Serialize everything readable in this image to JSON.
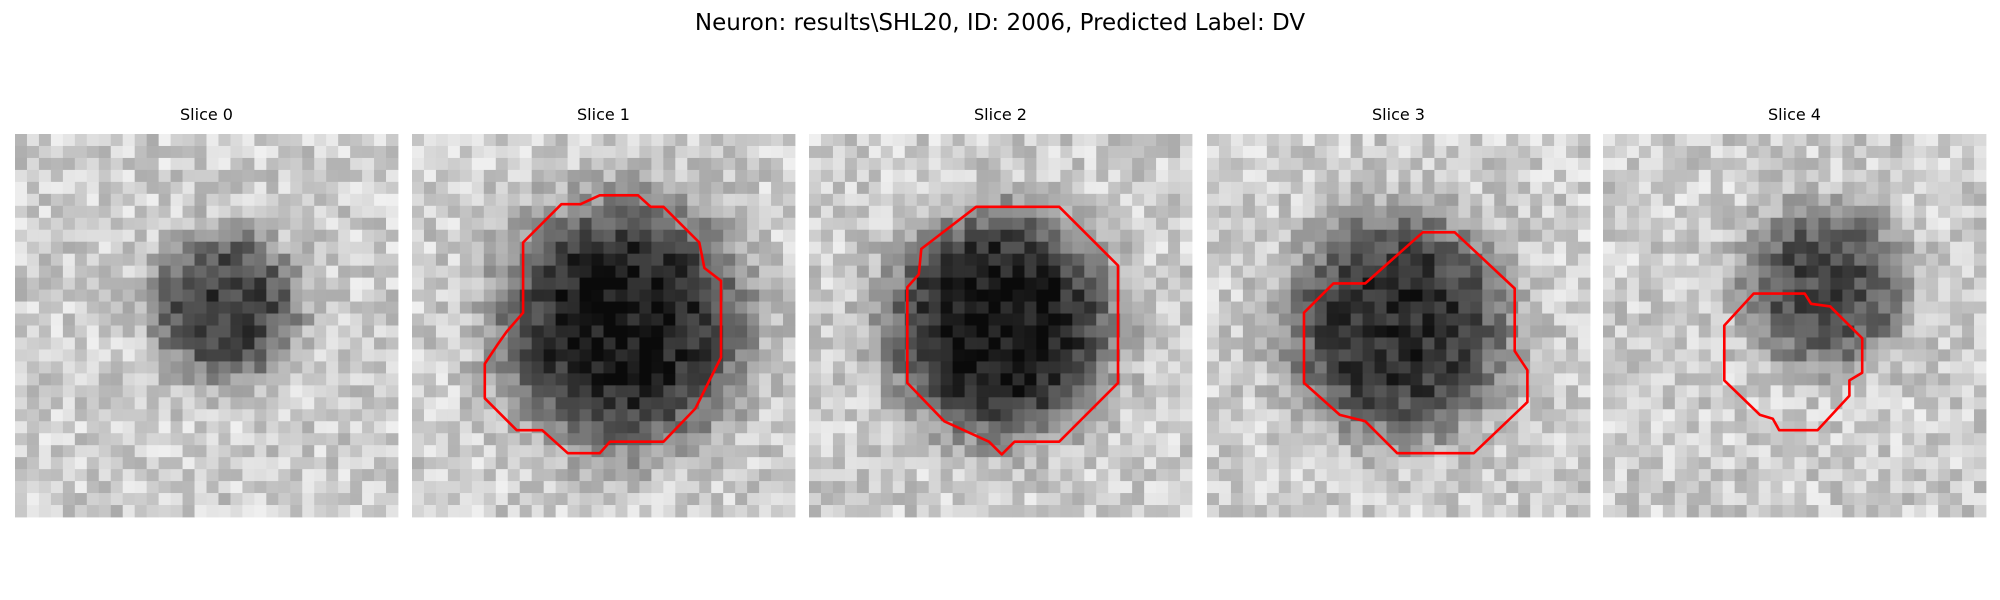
{
  "title": "Neuron: results\\SHL20, ID: 2006, Predicted Label: DV",
  "panels": [
    {
      "title": "Slice 0"
    },
    {
      "title": "Slice 1"
    },
    {
      "title": "Slice 2"
    },
    {
      "title": "Slice 3"
    },
    {
      "title": "Slice 4"
    }
  ]
}
